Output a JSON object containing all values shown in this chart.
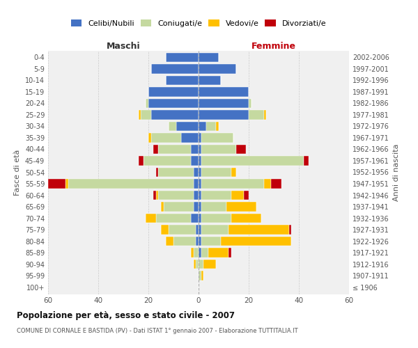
{
  "age_groups": [
    "100+",
    "95-99",
    "90-94",
    "85-89",
    "80-84",
    "75-79",
    "70-74",
    "65-69",
    "60-64",
    "55-59",
    "50-54",
    "45-49",
    "40-44",
    "35-39",
    "30-34",
    "25-29",
    "20-24",
    "15-19",
    "10-14",
    "5-9",
    "0-4"
  ],
  "birth_years": [
    "≤ 1906",
    "1907-1911",
    "1912-1916",
    "1917-1921",
    "1922-1926",
    "1927-1931",
    "1932-1936",
    "1937-1941",
    "1942-1946",
    "1947-1951",
    "1952-1956",
    "1957-1961",
    "1962-1966",
    "1967-1971",
    "1972-1976",
    "1977-1981",
    "1982-1986",
    "1987-1991",
    "1992-1996",
    "1997-2001",
    "2002-2006"
  ],
  "males": {
    "celibi": [
      0,
      0,
      0,
      0,
      1,
      1,
      3,
      2,
      2,
      2,
      2,
      3,
      3,
      7,
      9,
      19,
      20,
      20,
      13,
      19,
      13
    ],
    "coniugati": [
      0,
      0,
      1,
      2,
      9,
      11,
      14,
      12,
      14,
      50,
      14,
      19,
      13,
      12,
      3,
      4,
      1,
      0,
      0,
      0,
      0
    ],
    "vedovi": [
      0,
      0,
      1,
      1,
      3,
      3,
      4,
      1,
      1,
      1,
      0,
      0,
      0,
      1,
      0,
      1,
      0,
      0,
      0,
      0,
      0
    ],
    "divorziati": [
      0,
      0,
      0,
      0,
      0,
      0,
      0,
      0,
      1,
      7,
      1,
      2,
      2,
      0,
      0,
      0,
      0,
      0,
      0,
      0,
      0
    ]
  },
  "females": {
    "nubili": [
      0,
      0,
      0,
      1,
      1,
      1,
      1,
      1,
      1,
      1,
      1,
      1,
      1,
      1,
      3,
      20,
      20,
      20,
      9,
      15,
      8
    ],
    "coniugate": [
      0,
      1,
      2,
      3,
      8,
      11,
      12,
      10,
      12,
      25,
      12,
      41,
      14,
      13,
      4,
      6,
      1,
      0,
      0,
      0,
      0
    ],
    "vedove": [
      0,
      1,
      5,
      8,
      28,
      24,
      12,
      12,
      5,
      3,
      2,
      0,
      0,
      0,
      1,
      1,
      0,
      0,
      0,
      0,
      0
    ],
    "divorziate": [
      0,
      0,
      0,
      1,
      0,
      1,
      0,
      0,
      2,
      4,
      0,
      2,
      4,
      0,
      0,
      0,
      0,
      0,
      0,
      0,
      0
    ]
  },
  "colors": {
    "celibi_nubili": "#4472C4",
    "coniugati_e": "#c5d9a0",
    "vedovi_e": "#ffc000",
    "divorziati_e": "#c0000a"
  },
  "title": "Popolazione per età, sesso e stato civile - 2007",
  "subtitle": "COMUNE DI CORNALE E BASTIDA (PV) - Dati ISTAT 1° gennaio 2007 - Elaborazione TUTTITALIA.IT",
  "header_left": "Maschi",
  "header_right": "Femmine",
  "ylabel_left": "Fasce di età",
  "ylabel_right": "Anni di nascita",
  "xlim": 60,
  "legend_labels": [
    "Celibi/Nubili",
    "Coniugati/e",
    "Vedovi/e",
    "Divorziati/e"
  ],
  "background_color": "#ffffff",
  "plot_bg": "#f0f0f0",
  "bar_height": 0.82
}
